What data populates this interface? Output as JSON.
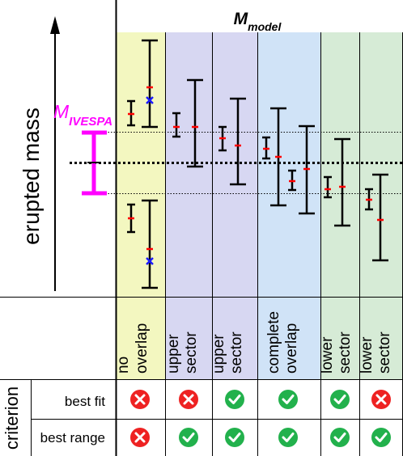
{
  "header": {
    "model_label_main": "M",
    "model_label_sub": "model"
  },
  "y_axis": {
    "label": "erupted mass"
  },
  "reference": {
    "label_main": "M",
    "label_sub": "IVESPA",
    "color": "#ff00ff"
  },
  "colors": {
    "no_overlap": "#f3f7c0",
    "upper_sector": "#d7d7f2",
    "complete_overlap": "#d0e3f7",
    "lower_sector": "#d6ebd6",
    "pass": "#22b14c",
    "fail": "#ee2222",
    "central_marker": "#ff0000",
    "outside_marker": "#1a1aff"
  },
  "columns": [
    {
      "lines": [
        "no",
        "overlap"
      ]
    },
    {
      "lines": [
        "upper",
        "sector"
      ]
    },
    {
      "lines": [
        "upper",
        "sector"
      ]
    },
    {
      "lines": [
        "complete",
        "overlap"
      ]
    },
    {
      "lines": [
        "lower",
        "sector"
      ]
    },
    {
      "lines": [
        "lower",
        "sector"
      ]
    }
  ],
  "criteria": {
    "side_label": "criterion",
    "rows": [
      {
        "label": "best fit",
        "results": [
          "fail",
          "fail",
          "pass",
          "pass",
          "pass",
          "fail"
        ]
      },
      {
        "label": "best range",
        "results": [
          "fail",
          "pass",
          "pass",
          "pass",
          "pass",
          "pass"
        ]
      }
    ]
  }
}
